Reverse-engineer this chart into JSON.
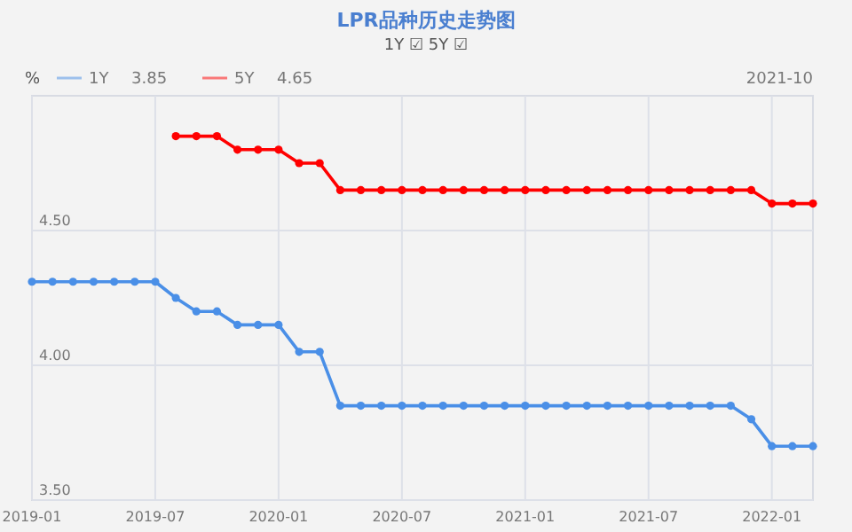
{
  "chart_data": {
    "type": "line",
    "title": "LPR品种历史走势图",
    "subtitle": "1Y ☑ 5Y ☑",
    "ylabel": "%",
    "x": [
      "2019-01",
      "2019-02",
      "2019-03",
      "2019-04",
      "2019-05",
      "2019-06",
      "2019-07",
      "2019-08",
      "2019-09",
      "2019-10",
      "2019-11",
      "2019-12",
      "2020-01",
      "2020-02",
      "2020-03",
      "2020-04",
      "2020-05",
      "2020-06",
      "2020-07",
      "2020-08",
      "2020-09",
      "2020-10",
      "2020-11",
      "2020-12",
      "2021-01",
      "2021-02",
      "2021-03",
      "2021-04",
      "2021-05",
      "2021-06",
      "2021-07",
      "2021-08",
      "2021-09",
      "2021-10",
      "2021-11",
      "2021-12",
      "2022-01",
      "2022-02",
      "2022-03"
    ],
    "series": [
      {
        "name": "1Y",
        "color": "#4a8fe7",
        "values": [
          4.31,
          4.31,
          4.31,
          4.31,
          4.31,
          4.31,
          4.31,
          4.25,
          4.2,
          4.2,
          4.15,
          4.15,
          4.15,
          4.05,
          4.05,
          3.85,
          3.85,
          3.85,
          3.85,
          3.85,
          3.85,
          3.85,
          3.85,
          3.85,
          3.85,
          3.85,
          3.85,
          3.85,
          3.85,
          3.85,
          3.85,
          3.85,
          3.85,
          3.85,
          3.85,
          3.8,
          3.7,
          3.7,
          3.7
        ]
      },
      {
        "name": "5Y",
        "color": "#ff0000",
        "values": [
          null,
          null,
          null,
          null,
          null,
          null,
          null,
          4.85,
          4.85,
          4.85,
          4.8,
          4.8,
          4.8,
          4.75,
          4.75,
          4.65,
          4.65,
          4.65,
          4.65,
          4.65,
          4.65,
          4.65,
          4.65,
          4.65,
          4.65,
          4.65,
          4.65,
          4.65,
          4.65,
          4.65,
          4.65,
          4.65,
          4.65,
          4.65,
          4.65,
          4.65,
          4.6,
          4.6,
          4.6
        ]
      }
    ],
    "xlim": [
      "2019-01",
      "2022-03"
    ],
    "xticks": [
      "2019-01",
      "2019-07",
      "2020-01",
      "2020-07",
      "2021-01",
      "2021-07",
      "2022-01"
    ],
    "ylim": [
      3.5,
      5.0
    ],
    "yticks": [
      {
        "value": 3.5,
        "label": "3.50"
      },
      {
        "value": 4.0,
        "label": "4.00"
      },
      {
        "value": 4.5,
        "label": "4.50"
      }
    ],
    "grid": true,
    "legend": "top left",
    "marker": "circle",
    "annotations": [
      "3.85",
      "4.65",
      "2021-10"
    ]
  }
}
